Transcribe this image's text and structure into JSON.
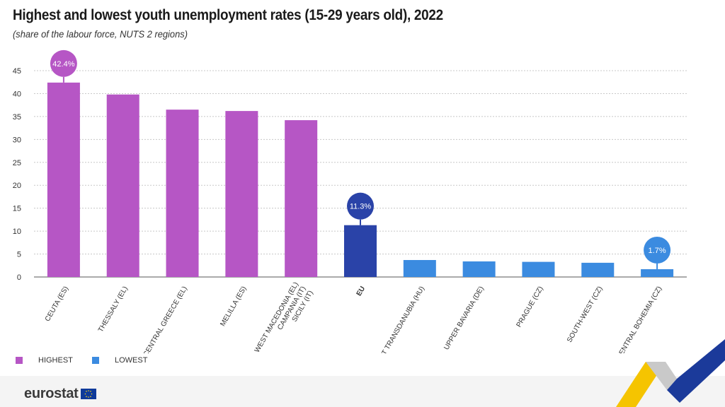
{
  "title": "Highest and lowest youth unemployment rates (15-29 years old), 2022",
  "subtitle": "(share of the labour force, NUTS 2 regions)",
  "legend": [
    {
      "label": "HIGHEST",
      "color": "#b656c5"
    },
    {
      "label": "LOWEST",
      "color": "#3b8be0"
    }
  ],
  "footer": {
    "logo_text": "eurostat"
  },
  "colors": {
    "highest": "#b656c5",
    "eu": "#2a43a8",
    "lowest": "#3b8be0"
  },
  "chart_data": {
    "type": "bar",
    "title": "Highest and lowest youth unemployment rates (15-29 years old), 2022",
    "subtitle": "(share of the labour force, NUTS 2 regions)",
    "ylim": [
      0,
      45
    ],
    "yticks": [
      0,
      5,
      10,
      15,
      20,
      25,
      30,
      35,
      40,
      45
    ],
    "grid": true,
    "legend_position": "bottom-left",
    "categories": [
      [
        "CEUTA (ES)"
      ],
      [
        "THESSALY (EL)"
      ],
      [
        "CENTRAL GREECE (EL)"
      ],
      [
        "MELILLA (ES)"
      ],
      [
        "WEST MACEDONIA (EL)",
        "CAMPANIA (IT)",
        "SICILY (IT)"
      ],
      [
        "EU"
      ],
      [
        "WEST TRANSDANUBIA (HU)"
      ],
      [
        "UPPER BAVARIA (DE)"
      ],
      [
        "PRAGUE (CZ)"
      ],
      [
        "SOUTH-WEST (CZ)"
      ],
      [
        "CENTRAL BOHEMIA (CZ)"
      ]
    ],
    "groups": [
      "highest",
      "highest",
      "highest",
      "highest",
      "highest",
      "eu",
      "lowest",
      "lowest",
      "lowest",
      "lowest",
      "lowest"
    ],
    "values": [
      42.4,
      39.8,
      36.5,
      36.2,
      34.2,
      11.3,
      3.7,
      3.4,
      3.3,
      3.1,
      1.7
    ],
    "data_labels": [
      {
        "index": 0,
        "text": "42.4%"
      },
      {
        "index": 5,
        "text": "11.3%"
      },
      {
        "index": 10,
        "text": "1.7%"
      }
    ]
  }
}
